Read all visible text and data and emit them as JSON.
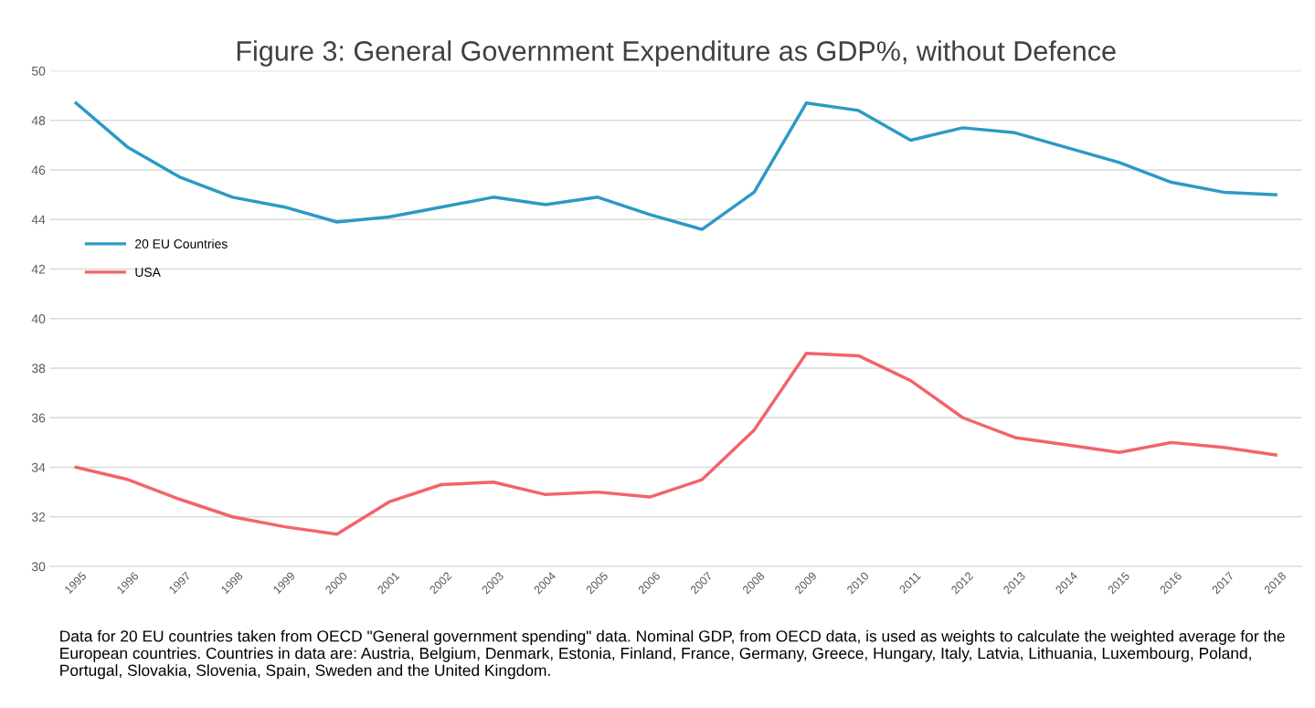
{
  "chart_data": {
    "type": "line",
    "title": "Figure 3: General Government Expenditure as GDP%, without Defence",
    "categories": [
      "1995",
      "1996",
      "1997",
      "1998",
      "1999",
      "2000",
      "2001",
      "2002",
      "2003",
      "2004",
      "2005",
      "2006",
      "2007",
      "2008",
      "2009",
      "2010",
      "2011",
      "2012",
      "2013",
      "2014",
      "2015",
      "2016",
      "2017",
      "2018"
    ],
    "series": [
      {
        "name": "20 EU Countries",
        "color": "#2b9ac4",
        "values": [
          48.7,
          46.9,
          45.7,
          44.9,
          44.5,
          43.9,
          44.1,
          44.5,
          44.9,
          44.6,
          44.9,
          44.2,
          43.6,
          45.1,
          48.7,
          48.4,
          47.2,
          47.7,
          47.5,
          46.9,
          46.3,
          45.5,
          45.1,
          45.0
        ]
      },
      {
        "name": "USA",
        "color": "#f2646a",
        "values": [
          34.0,
          33.5,
          32.7,
          32.0,
          31.6,
          31.3,
          32.6,
          33.3,
          33.4,
          32.9,
          33.0,
          32.8,
          33.5,
          35.5,
          38.6,
          38.5,
          37.5,
          36.0,
          35.2,
          34.9,
          34.6,
          35.0,
          34.8,
          34.5
        ]
      }
    ],
    "ylim": [
      30,
      50
    ],
    "yticks": [
      30,
      32,
      34,
      36,
      38,
      40,
      42,
      44,
      46,
      48,
      50
    ],
    "grid": "y",
    "legend": "left",
    "marker": "none",
    "line_style": "solid",
    "annotations": [
      "Data for 20 EU countries taken from OECD \"General government spending\" data. Nominal GDP, from OECD data, is used as weights to calculate the weighted average for the European countries. Countries in data are: Austria, Belgium, Denmark, Estonia, Finland, France, Germany, Greece, Hungary, Italy, Latvia, Lithuania, Luxembourg, Poland, Portugal, Slovakia, Slovenia, Spain, Sweden and the United Kingdom."
    ]
  }
}
